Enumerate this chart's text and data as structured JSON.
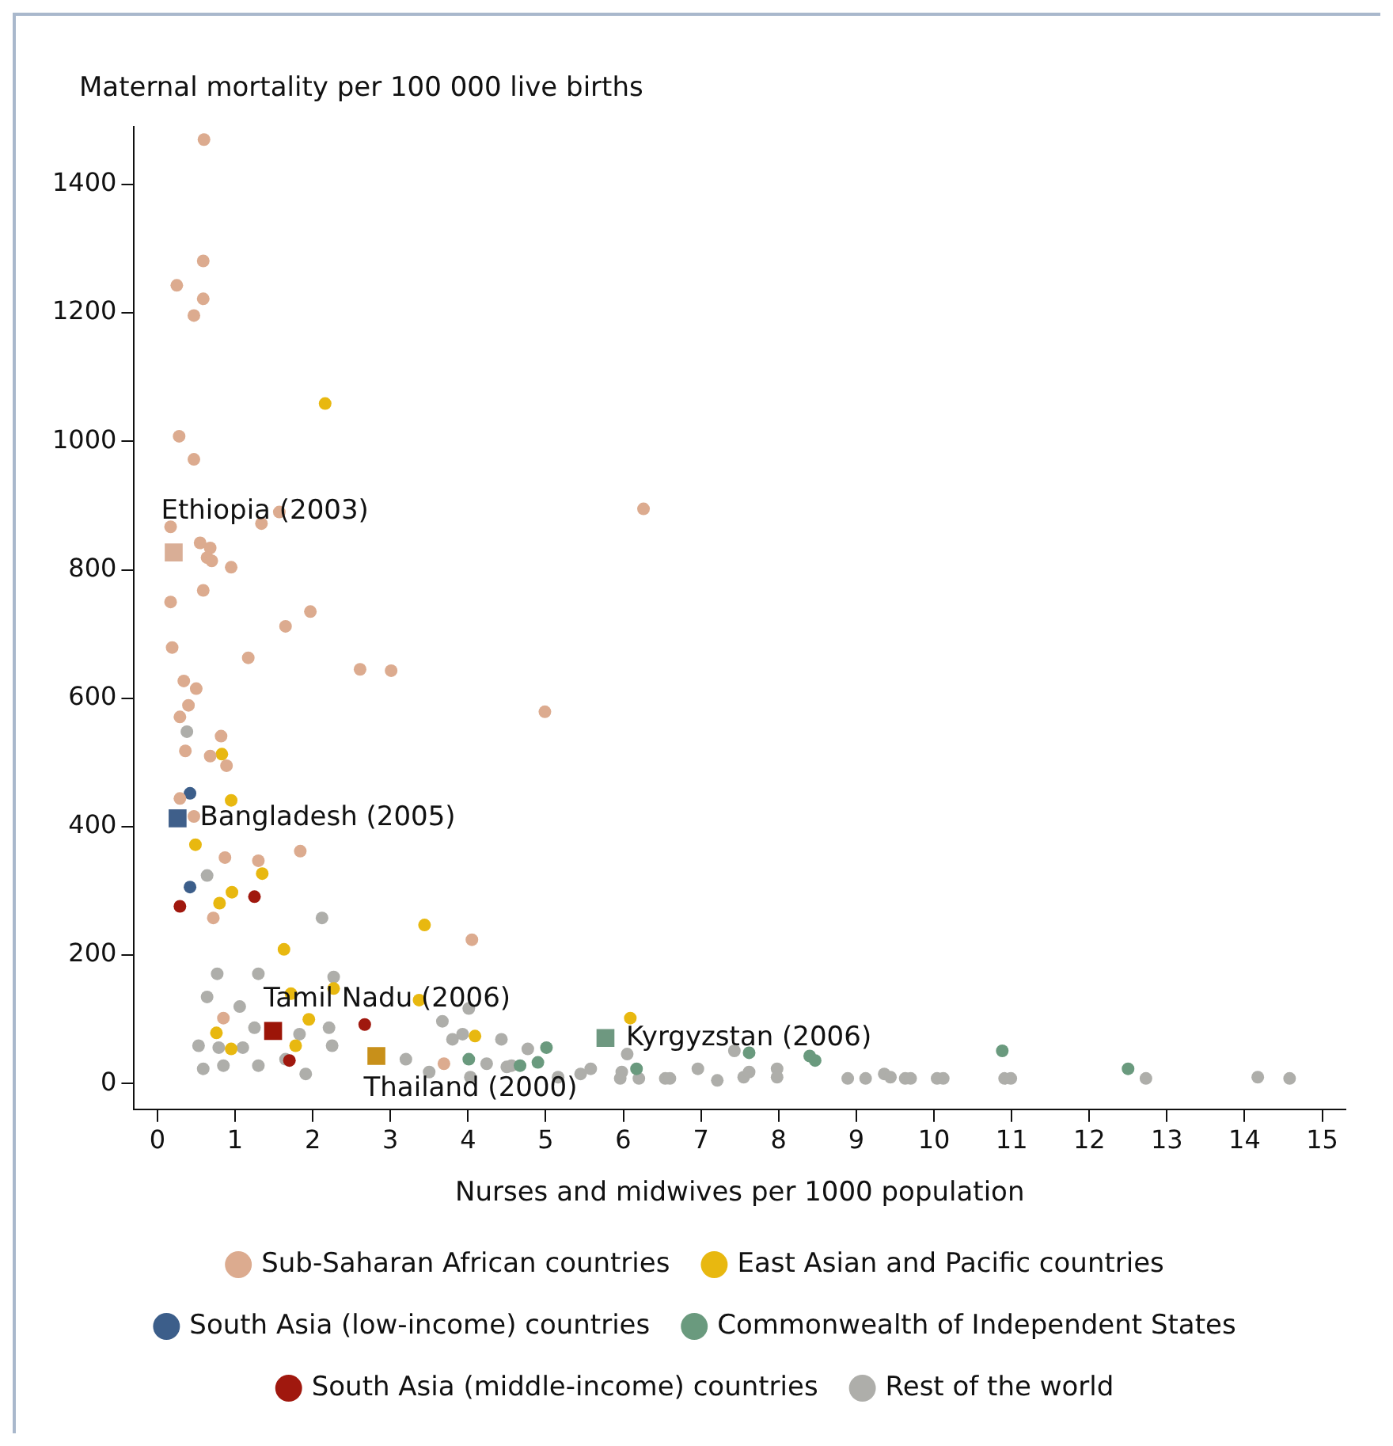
{
  "chart_data": {
    "type": "scatter",
    "ylabel": "Maternal mortality per 100 000 live births",
    "xlabel": "Nurses and midwives per 1000 population",
    "xlim": [
      -0.3,
      15.3
    ],
    "ylim": [
      -40,
      1490
    ],
    "xticks": [
      0,
      1,
      2,
      3,
      4,
      5,
      6,
      7,
      8,
      9,
      10,
      11,
      12,
      13,
      14,
      15
    ],
    "yticks": [
      0,
      200,
      400,
      600,
      800,
      1000,
      1200,
      1400
    ],
    "grid": false,
    "legend": "bottom",
    "marker": "circle",
    "series": [
      {
        "name": "Sub-Saharan African countries",
        "color": "#dcab8f",
        "x": [
          0.6,
          0.59,
          0.25,
          0.59,
          0.47,
          0.28,
          0.47,
          0.17,
          1.57,
          1.34,
          0.55,
          0.68,
          0.64,
          0.7,
          0.95,
          0.59,
          0.17,
          6.26,
          1.97,
          1.65,
          1.17,
          2.61,
          3.01,
          4.99,
          0.19,
          0.34,
          0.5,
          0.4,
          0.29,
          0.82,
          0.36,
          0.68,
          0.89,
          0.29,
          0.47,
          0.87,
          1.3,
          1.84,
          0.72,
          4.05,
          0.85,
          3.69
        ],
        "values": [
          1470,
          1281,
          1243,
          1222,
          1196,
          1008,
          972,
          867,
          890,
          872,
          842,
          834,
          819,
          814,
          804,
          768,
          750,
          895,
          735,
          712,
          663,
          645,
          643,
          579,
          679,
          627,
          615,
          589,
          571,
          541,
          518,
          510,
          495,
          444,
          416,
          352,
          347,
          362,
          258,
          224,
          102,
          31
        ]
      },
      {
        "name": "East Asian and Pacific countries",
        "color": "#e8b810",
        "x": [
          2.16,
          0.83,
          0.95,
          0.49,
          1.35,
          0.96,
          0.8,
          3.44,
          1.63,
          1.72,
          2.27,
          3.37,
          1.95,
          0.76,
          0.95,
          1.78,
          4.09,
          6.09
        ],
        "values": [
          1059,
          513,
          441,
          372,
          327,
          298,
          281,
          247,
          209,
          140,
          148,
          130,
          100,
          79,
          54,
          59,
          74,
          102
        ]
      },
      {
        "name": "South Asia (low-income) countries",
        "color": "#3c5e8a",
        "x": [
          0.42,
          0.42
        ],
        "values": [
          452,
          306
        ]
      },
      {
        "name": "Commonwealth of Independent States",
        "color": "#6a9a7e",
        "x": [
          5.01,
          4.01,
          4.67,
          4.9,
          6.17,
          7.62,
          8.4,
          8.47,
          10.88,
          12.5
        ],
        "values": [
          56,
          38,
          28,
          33,
          23,
          48,
          43,
          36,
          51,
          23
        ]
      },
      {
        "name": "South Asia (middle-income) countries",
        "color": "#a0180e",
        "x": [
          1.25,
          0.29,
          2.67,
          1.7
        ],
        "values": [
          291,
          276,
          92,
          36
        ]
      },
      {
        "name": "Rest of the world",
        "color": "#aeaeaa",
        "x": [
          0.38,
          0.64,
          2.12,
          0.77,
          1.3,
          2.27,
          0.64,
          1.06,
          1.25,
          2.21,
          1.83,
          0.53,
          0.79,
          1.1,
          2.25,
          0.59,
          0.85,
          1.3,
          1.91,
          1.65,
          3.67,
          4.01,
          3.8,
          3.93,
          4.43,
          4.77,
          3.2,
          3.5,
          4.03,
          4.24,
          4.5,
          4.56,
          5.16,
          5.45,
          5.58,
          5.98,
          5.96,
          6.05,
          6.2,
          6.54,
          6.6,
          6.96,
          7.21,
          7.43,
          7.55,
          7.62,
          7.98,
          7.98,
          8.89,
          9.12,
          9.36,
          9.44,
          9.63,
          9.7,
          10.04,
          10.12,
          10.91,
          10.99,
          12.73,
          14.17,
          14.58
        ],
        "values": [
          548,
          324,
          258,
          171,
          171,
          166,
          135,
          120,
          87,
          87,
          77,
          59,
          56,
          56,
          59,
          23,
          28,
          28,
          15,
          38,
          97,
          117,
          69,
          77,
          69,
          54,
          38,
          18,
          10,
          31,
          26,
          28,
          10,
          15,
          23,
          18,
          8,
          46,
          8,
          8,
          8,
          23,
          5,
          51,
          10,
          18,
          23,
          10,
          8,
          8,
          15,
          10,
          8,
          8,
          8,
          8,
          8,
          8,
          8,
          10,
          8
        ]
      },
      {
        "marker": "square",
        "colors": [
          "#d9ae96",
          "#3f5f8a",
          "#9c1508",
          "#c8901a",
          "#6e9880"
        ],
        "x": [
          0.21,
          0.26,
          1.49,
          2.82,
          5.77
        ],
        "values": [
          827,
          413,
          82,
          43,
          71
        ]
      }
    ],
    "annotations": [
      {
        "text": "Ethiopia (2003)",
        "x": 0.21,
        "y": 827
      },
      {
        "text": "Bangladesh (2005)",
        "x": 0.26,
        "y": 413
      },
      {
        "text": "Tamil Nadu (2006)",
        "x": 1.49,
        "y": 82
      },
      {
        "text": "Thailand (2000)",
        "x": 2.82,
        "y": 43
      },
      {
        "text": "Kyrgyzstan (2006)",
        "x": 5.77,
        "y": 71
      }
    ]
  }
}
